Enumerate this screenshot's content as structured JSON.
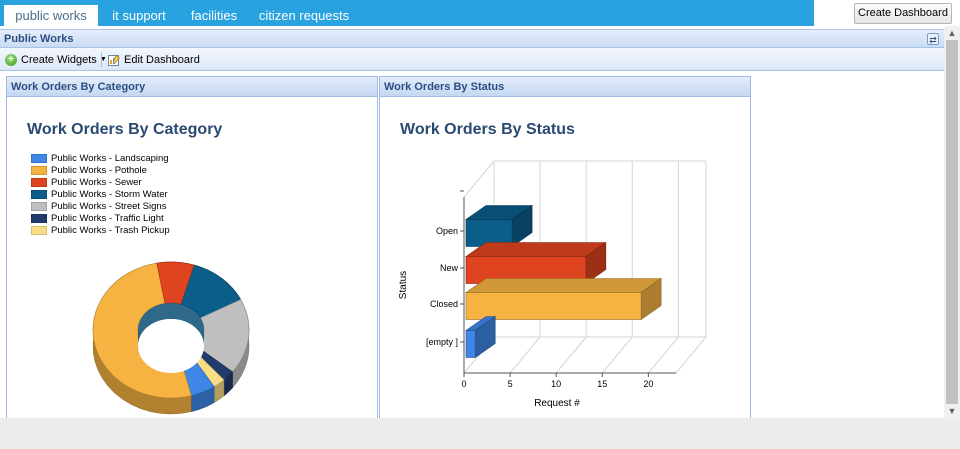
{
  "tabs": [
    {
      "label": "public works",
      "active": true
    },
    {
      "label": "it support",
      "active": false
    },
    {
      "label": "facilities",
      "active": false
    },
    {
      "label": "citizen requests",
      "active": false
    }
  ],
  "create_dashboard_label": "Create Dashboard",
  "dashboard": {
    "title": "Public Works",
    "toolbar": {
      "create_widgets_label": "Create Widgets",
      "edit_dashboard_label": "Edit Dashboard"
    }
  },
  "widgets": {
    "category": {
      "header": "Work Orders By Category",
      "chart_title": "Work Orders By Category"
    },
    "status": {
      "header": "Work Orders By Status",
      "chart_title": "Work Orders By Status"
    }
  },
  "chart_data": [
    {
      "type": "pie",
      "variant": "3d-donut",
      "title": "Work Orders By Category",
      "legend_position": "top-left",
      "labels": [
        "Public Works - Landscaping",
        "Public Works - Pothole",
        "Public Works - Sewer",
        "Public Works - Storm Water",
        "Public Works - Street Signs",
        "Public Works - Traffic Light",
        "Public Works - Trash Pickup"
      ],
      "colors": [
        "#3f87e6",
        "#f6b342",
        "#df4420",
        "#0b5d8a",
        "#bfbfbf",
        "#1e3c6c",
        "#f9dd85"
      ],
      "values": [
        2,
        20,
        3,
        5,
        7,
        1,
        1
      ]
    },
    {
      "type": "bar",
      "orientation": "horizontal",
      "variant": "3d",
      "title": "Work Orders By Status",
      "xlabel": "Request #",
      "ylabel": "Status",
      "categories": [
        "Open",
        "New",
        "Closed",
        "[empty ]"
      ],
      "values": [
        5,
        13,
        19,
        1
      ],
      "colors": [
        "#0b5d8a",
        "#df4420",
        "#f6b342",
        "#3f87e6"
      ],
      "xlim": [
        0,
        23
      ],
      "xticks": [
        0,
        5,
        10,
        15,
        20
      ],
      "grid": true
    }
  ]
}
